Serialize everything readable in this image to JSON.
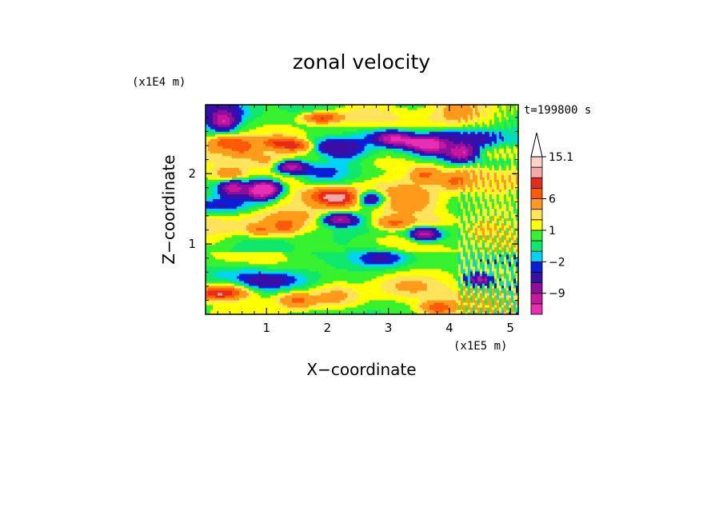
{
  "chart_data": {
    "type": "heatmap",
    "title": "zonal velocity",
    "xlabel": "X−coordinate",
    "ylabel": "Z−coordinate",
    "x_scale_label": "(x1E5 m)",
    "y_scale_label": "(x1E4 m)",
    "time_label": "t=199800 s",
    "xlim": [
      0,
      5.13
    ],
    "ylim": [
      0,
      2.98
    ],
    "x_ticks": [
      "1",
      "2",
      "3",
      "4",
      "5"
    ],
    "x_tick_values": [
      1,
      2,
      3,
      4,
      5
    ],
    "y_ticks": [
      "1",
      "2"
    ],
    "y_tick_values": [
      1,
      2
    ],
    "grid": false,
    "colorbar": {
      "placement": "right",
      "levels": [
        -15,
        -12,
        -9,
        -6,
        -3,
        -2,
        -1,
        0,
        1,
        2,
        3,
        6,
        9,
        12,
        15.1
      ],
      "colors": [
        "#e82fb4",
        "#c6179f",
        "#8d0f9c",
        "#3a0fa6",
        "#0a1ed8",
        "#00d3f5",
        "#0fe86b",
        "#36f22f",
        "#ffff00",
        "#ffe35a",
        "#ff9a1a",
        "#ff5a08",
        "#e82a1a",
        "#f5a8a8",
        "#fbd3c6"
      ],
      "labels": [
        "15.1",
        "6",
        "1",
        "−2",
        "−9"
      ],
      "label_values": [
        15.1,
        6,
        1,
        -2,
        -9
      ]
    },
    "field_notes": "Layered zonal velocity field: alternating bands of positive (yellow/orange) and negative (blue/cyan) velocity tilted with height, mostly yellow/green near the surface, fine-scale noisy structure near x = 4.2–5.1 (x1E5 m)."
  }
}
